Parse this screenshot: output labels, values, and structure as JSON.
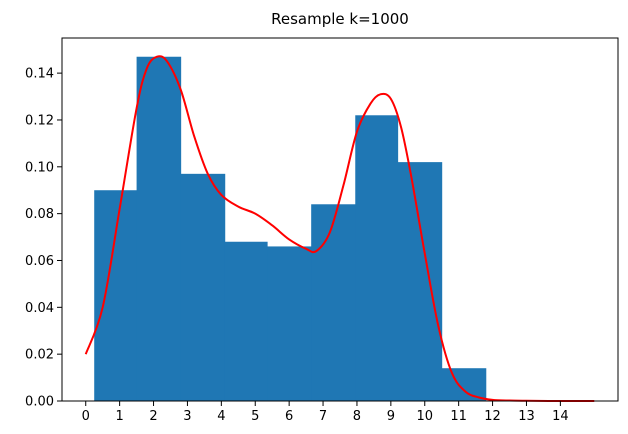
{
  "chart_data": {
    "type": "bar",
    "title": "Resample k=1000",
    "xlabel": "",
    "ylabel": "",
    "xlim": [
      -0.7,
      15.7
    ],
    "ylim": [
      0,
      0.155
    ],
    "x_ticks": [
      0,
      1,
      2,
      3,
      4,
      5,
      6,
      7,
      8,
      9,
      10,
      11,
      12,
      13,
      14
    ],
    "y_ticks": [
      0.0,
      0.02,
      0.04,
      0.06,
      0.08,
      0.1,
      0.12,
      0.14
    ],
    "y_tick_labels": [
      "0.00",
      "0.02",
      "0.04",
      "0.06",
      "0.08",
      "0.10",
      "0.12",
      "0.14"
    ],
    "grid": false,
    "histogram": {
      "color": "#1f77b4",
      "bins": [
        {
          "x0": 0.25,
          "x1": 1.5,
          "height": 0.09
        },
        {
          "x0": 1.5,
          "x1": 2.8,
          "height": 0.147
        },
        {
          "x0": 2.8,
          "x1": 4.1,
          "height": 0.097
        },
        {
          "x0": 4.1,
          "x1": 5.35,
          "height": 0.068
        },
        {
          "x0": 5.35,
          "x1": 6.65,
          "height": 0.066
        },
        {
          "x0": 6.65,
          "x1": 7.95,
          "height": 0.084
        },
        {
          "x0": 7.95,
          "x1": 9.2,
          "height": 0.122
        },
        {
          "x0": 9.2,
          "x1": 10.5,
          "height": 0.102
        },
        {
          "x0": 10.5,
          "x1": 11.8,
          "height": 0.014
        }
      ]
    },
    "density_curve": {
      "color": "#ff0000",
      "x": [
        0,
        0.5,
        1.0,
        1.5,
        1.8,
        2.1,
        2.4,
        2.8,
        3.2,
        3.6,
        4.0,
        4.5,
        5.0,
        5.5,
        6.0,
        6.5,
        6.8,
        7.2,
        7.6,
        8.0,
        8.4,
        8.7,
        9.0,
        9.3,
        9.6,
        10.0,
        10.4,
        10.8,
        11.2,
        11.6,
        12.0,
        12.5,
        13.0,
        14.0,
        15.0
      ],
      "y": [
        0.02,
        0.04,
        0.082,
        0.125,
        0.142,
        0.147,
        0.145,
        0.133,
        0.113,
        0.097,
        0.088,
        0.083,
        0.08,
        0.075,
        0.069,
        0.065,
        0.064,
        0.072,
        0.092,
        0.115,
        0.127,
        0.131,
        0.129,
        0.117,
        0.096,
        0.063,
        0.032,
        0.012,
        0.004,
        0.0015,
        0.0005,
        0.0002,
        0.0001,
        0.0,
        0.0
      ]
    }
  }
}
